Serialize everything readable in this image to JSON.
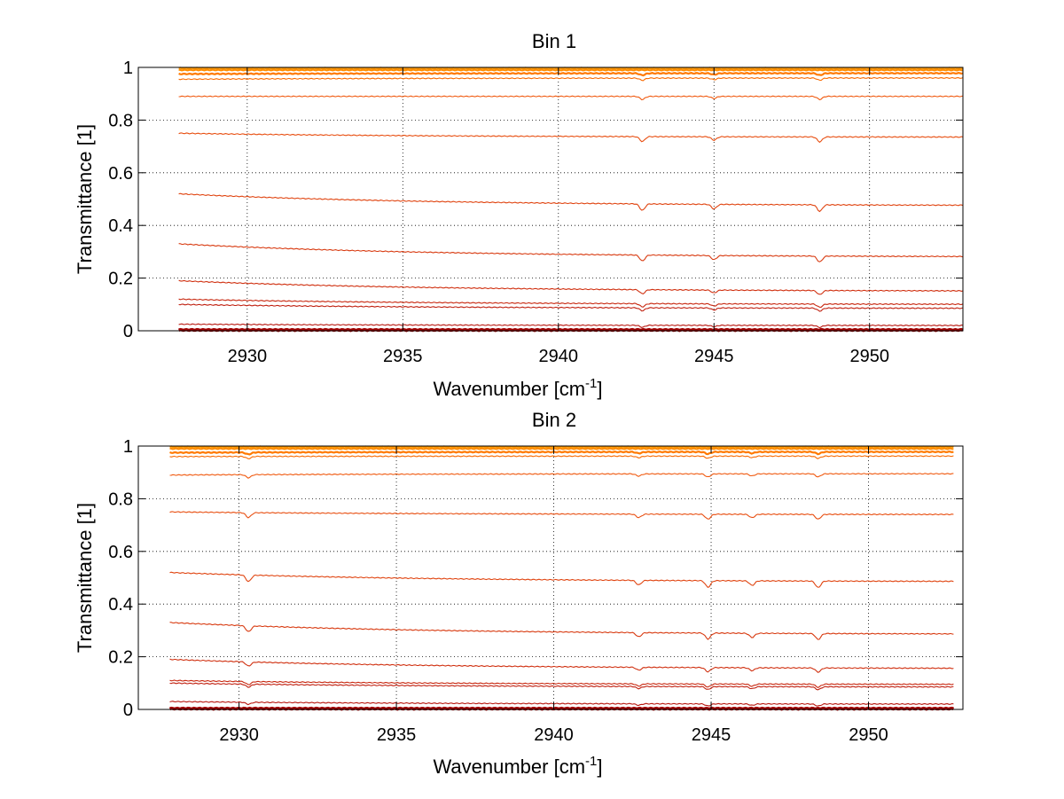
{
  "chart_data": [
    {
      "type": "line",
      "title": "Bin 1",
      "xlabel": "Wavenumber [cm",
      "xlabel_sup": "-1",
      "xlabel_suffix": "]",
      "ylabel": "Transmittance [1]",
      "xlim": [
        2926.5,
        2953
      ],
      "ylim": [
        0,
        1
      ],
      "x_range": [
        2927.8,
        2953
      ],
      "xticks": [
        2930,
        2935,
        2940,
        2945,
        2950
      ],
      "xtick_labels": [
        "2930",
        "2935",
        "2940",
        "2945",
        "2950"
      ],
      "yticks": [
        0,
        0.2,
        0.4,
        0.6,
        0.8,
        1
      ],
      "ytick_labels": [
        "0",
        "0.2",
        "0.4",
        "0.6",
        "0.8",
        "1"
      ],
      "grid": true,
      "absorption_lines": [
        2942.7,
        2945.0,
        2948.4
      ],
      "series": [
        {
          "color": "#ff9900",
          "start": 0.997,
          "end": 0.997
        },
        {
          "color": "#ff8c00",
          "start": 0.99,
          "end": 0.99
        },
        {
          "color": "#ff7a00",
          "start": 0.975,
          "end": 0.978
        },
        {
          "color": "#f86a00",
          "start": 0.955,
          "end": 0.96
        },
        {
          "color": "#f05a10",
          "start": 0.89,
          "end": 0.89
        },
        {
          "color": "#e84e10",
          "start": 0.75,
          "end": 0.735
        },
        {
          "color": "#e04410",
          "start": 0.52,
          "end": 0.475
        },
        {
          "color": "#d83a10",
          "start": 0.33,
          "end": 0.28
        },
        {
          "color": "#d03010",
          "start": 0.19,
          "end": 0.15
        },
        {
          "color": "#c82810",
          "start": 0.12,
          "end": 0.1
        },
        {
          "color": "#c02010",
          "start": 0.1,
          "end": 0.085
        },
        {
          "color": "#b81810",
          "start": 0.025,
          "end": 0.02
        },
        {
          "color": "#a00000",
          "start": 0.003,
          "end": 0.003
        }
      ]
    },
    {
      "type": "line",
      "title": "Bin 2",
      "xlabel": "Wavenumber [cm",
      "xlabel_sup": "-1",
      "xlabel_suffix": "]",
      "ylabel": "Transmittance [1]",
      "xlim": [
        2926.8,
        2953
      ],
      "ylim": [
        0,
        1
      ],
      "x_range": [
        2927.8,
        2952.7
      ],
      "xticks": [
        2930,
        2935,
        2940,
        2945,
        2950
      ],
      "xtick_labels": [
        "2930",
        "2935",
        "2940",
        "2945",
        "2950"
      ],
      "yticks": [
        0,
        0.2,
        0.4,
        0.6,
        0.8,
        1
      ],
      "ytick_labels": [
        "0",
        "0.2",
        "0.4",
        "0.6",
        "0.8",
        "1"
      ],
      "grid": true,
      "absorption_lines": [
        2930.3,
        2942.7,
        2944.9,
        2946.3,
        2948.4
      ],
      "series": [
        {
          "color": "#ff9900",
          "start": 0.997,
          "end": 0.997
        },
        {
          "color": "#ff8c00",
          "start": 0.99,
          "end": 0.99
        },
        {
          "color": "#ff7a00",
          "start": 0.975,
          "end": 0.978
        },
        {
          "color": "#f86a00",
          "start": 0.96,
          "end": 0.962
        },
        {
          "color": "#f05a10",
          "start": 0.89,
          "end": 0.895
        },
        {
          "color": "#e84e10",
          "start": 0.75,
          "end": 0.74
        },
        {
          "color": "#e04410",
          "start": 0.52,
          "end": 0.485
        },
        {
          "color": "#d83a10",
          "start": 0.33,
          "end": 0.285
        },
        {
          "color": "#d03010",
          "start": 0.19,
          "end": 0.155
        },
        {
          "color": "#c82810",
          "start": 0.11,
          "end": 0.095
        },
        {
          "color": "#c02010",
          "start": 0.1,
          "end": 0.085
        },
        {
          "color": "#b81810",
          "start": 0.03,
          "end": 0.02
        },
        {
          "color": "#a00000",
          "start": 0.003,
          "end": 0.003
        }
      ]
    }
  ]
}
